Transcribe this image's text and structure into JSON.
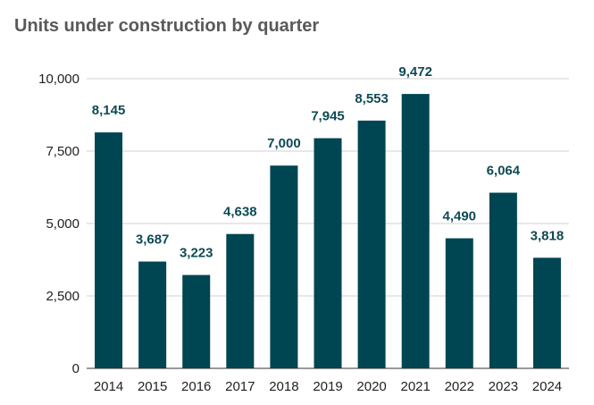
{
  "title": "Units under construction by quarter",
  "chart_data": {
    "type": "bar",
    "title": "Units under construction by quarter",
    "xlabel": "",
    "ylabel": "",
    "categories": [
      "2014",
      "2015",
      "2016",
      "2017",
      "2018",
      "2019",
      "2020",
      "2021",
      "2022",
      "2023",
      "2024"
    ],
    "values": [
      8145,
      3687,
      3223,
      4638,
      7000,
      7945,
      8553,
      9472,
      4490,
      6064,
      3818
    ],
    "value_labels": [
      "8,145",
      "3,687",
      "3,223",
      "4,638",
      "7,000",
      "7,945",
      "8,553",
      "9,472",
      "4,490",
      "6,064",
      "3,818"
    ],
    "ylim": [
      0,
      10000
    ],
    "yticks": [
      0,
      2500,
      5000,
      7500,
      10000
    ],
    "ytick_labels": [
      "0",
      "2,500",
      "5,000",
      "7,500",
      "10,000"
    ],
    "grid": true,
    "legend": "none",
    "bar_color": "#004552",
    "label_color": "#0e4a55"
  }
}
